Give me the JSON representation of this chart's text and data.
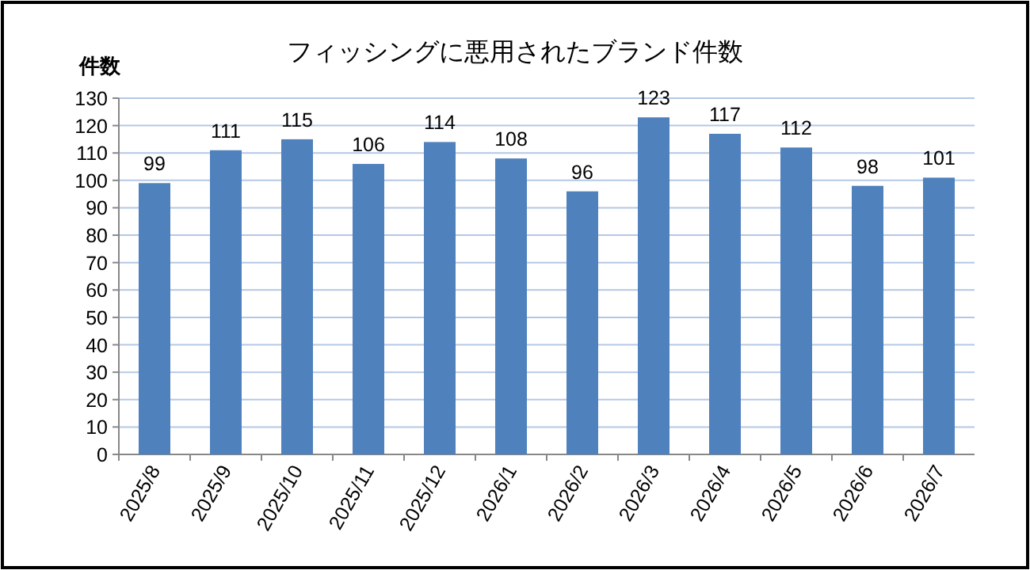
{
  "chart_data": {
    "type": "bar",
    "title": "フィッシングに悪用されたブランド件数",
    "ylabel": "件数",
    "categories": [
      "2025/8",
      "2025/9",
      "2025/10",
      "2025/11",
      "2025/12",
      "2026/1",
      "2026/2",
      "2026/3",
      "2026/4",
      "2026/5",
      "2026/6",
      "2026/7"
    ],
    "values": [
      99,
      111,
      115,
      106,
      114,
      108,
      96,
      123,
      117,
      112,
      98,
      101
    ],
    "color": "#4f81bd",
    "ylim": [
      0,
      130
    ],
    "yticks": [
      0,
      10,
      20,
      30,
      40,
      50,
      60,
      70,
      80,
      90,
      100,
      110,
      120,
      130
    ],
    "grid": "y",
    "data_labels": true
  }
}
